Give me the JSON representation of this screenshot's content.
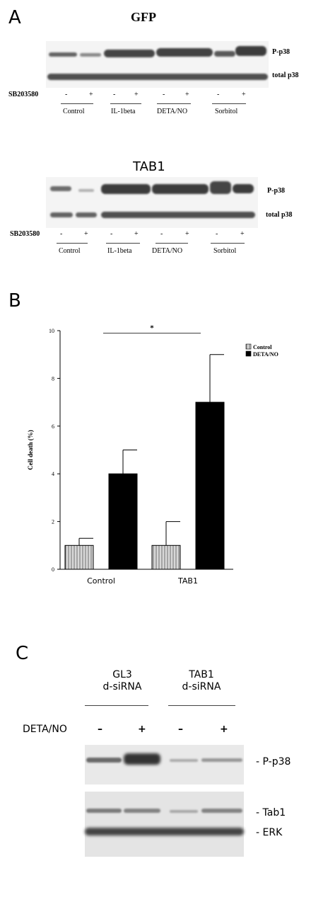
{
  "panelA": {
    "letter": "A",
    "blot1": {
      "title": "GFP",
      "row_labels": [
        "P-p38",
        "total p38"
      ],
      "treatment_label": "SB203580",
      "signs": [
        "-",
        "+",
        "-",
        "+",
        "-",
        "+",
        "-",
        "+"
      ],
      "groups": [
        "Control",
        "IL-1beta",
        "DETA/NO",
        "Sorbitol"
      ]
    },
    "blot2": {
      "title": "TAB1",
      "row_labels": [
        "P-p38",
        "total p38"
      ],
      "treatment_label": "SB203580",
      "signs": [
        "-",
        "+",
        "-",
        "+",
        "-",
        "+",
        "-",
        "+"
      ],
      "groups": [
        "Control",
        "IL-1beta",
        "DETA/NO",
        "Sorbitol"
      ]
    }
  },
  "panelB": {
    "letter": "B",
    "significance": "*",
    "legend": [
      "Control",
      "DETA/NO"
    ],
    "colors": {
      "control_fill": "#d8d8d8",
      "deta_fill": "#000000"
    }
  },
  "chart_data": {
    "type": "bar",
    "categories": [
      "Control",
      "TAB1"
    ],
    "series": [
      {
        "name": "Control",
        "values": [
          1,
          1
        ],
        "error": [
          0.3,
          1
        ]
      },
      {
        "name": "DETA/NO",
        "values": [
          4,
          7
        ],
        "error": [
          1,
          2
        ]
      }
    ],
    "ylabel": "Cell death (%)",
    "xlabel": "",
    "ylim": [
      0,
      10
    ],
    "yticks": [
      0,
      2,
      4,
      6,
      8,
      10
    ],
    "legend_position": "top-right"
  },
  "panelC": {
    "letter": "C",
    "groups": [
      "GL3\nd-siRNA",
      "TAB1\nd-siRNA"
    ],
    "treatment_label": "DETA/NO",
    "signs": [
      "–",
      "+",
      "–",
      "+"
    ],
    "row_labels": [
      "- P-p38",
      "- Tab1",
      "- ERK"
    ]
  }
}
